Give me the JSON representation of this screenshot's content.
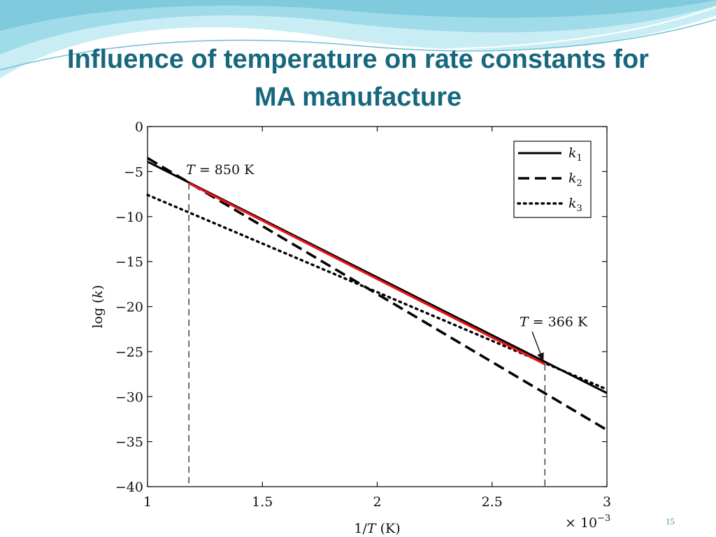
{
  "slide": {
    "title_line1": "Influence of temperature on rate constants for",
    "title_line2": "MA manufacture",
    "page_number": "15",
    "theme_colors": {
      "title": "#17677f",
      "wave_light": "#bfe9f2",
      "wave_mid": "#8fd6e6",
      "highlight": "#e8161b"
    }
  },
  "chart_data": {
    "type": "line",
    "xlabel": "1/T (K)",
    "ylabel": "log (k)",
    "x_multiplier_label": "× 10^-3",
    "xlim": [
      1,
      3
    ],
    "ylim": [
      -40,
      0
    ],
    "xticks": [
      1,
      1.5,
      2,
      2.5,
      3
    ],
    "xtick_labels": [
      "1",
      "1.5",
      "2",
      "2.5",
      "3"
    ],
    "yticks": [
      0,
      -5,
      -10,
      -15,
      -20,
      -25,
      -30,
      -35,
      -40
    ],
    "ytick_labels": [
      "0",
      "−5",
      "−10",
      "−15",
      "−20",
      "−25",
      "−30",
      "−35",
      "−40"
    ],
    "grid": false,
    "legend_position": "top-right",
    "series": [
      {
        "name": "k1",
        "style": "solid",
        "color": "#000000",
        "x": [
          1,
          3
        ],
        "y": [
          -3.9,
          -29.6
        ]
      },
      {
        "name": "k2",
        "style": "dashed",
        "color": "#000000",
        "x": [
          1,
          3
        ],
        "y": [
          -3.5,
          -33.7
        ]
      },
      {
        "name": "k3",
        "style": "dotted",
        "color": "#000000",
        "x": [
          1,
          3
        ],
        "y": [
          -7.6,
          -29.2
        ]
      }
    ],
    "highlight_segment": {
      "color": "#e8161b",
      "x": [
        1.18,
        2.73
      ],
      "y": [
        -6.3,
        -26.4
      ]
    },
    "annotations": [
      {
        "label": "T = 850 K",
        "x": 1.18,
        "y_top": -6.3
      },
      {
        "label": "T = 366 K",
        "x": 2.73,
        "y_top": -26.4,
        "text_at": [
          2.65,
          -21.7
        ]
      }
    ]
  }
}
